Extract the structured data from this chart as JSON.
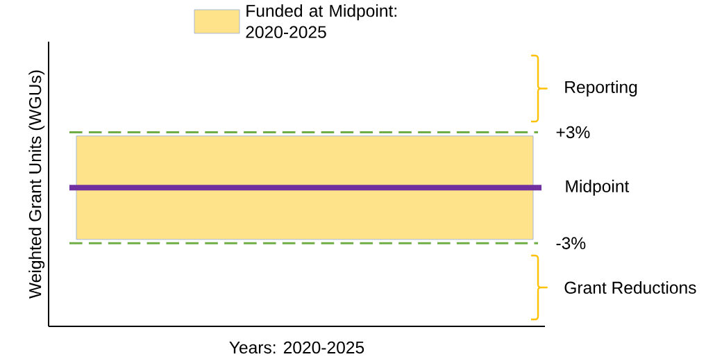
{
  "chart_data": {
    "type": "line",
    "xlabel": "Years: 2020-2025",
    "ylabel": "Weighted Grant Units (WGUs)",
    "categories": [
      null,
      null
    ],
    "series": [
      {
        "name": "Midpoint",
        "color": "#7030a0",
        "values": [
          0,
          0
        ]
      }
    ],
    "ylim": [
      -7.5,
      7.9
    ],
    "ref_lines": [
      {
        "axis": "y",
        "value": 3,
        "label": "+3%",
        "color": "#70ad47",
        "line_style": "dashed"
      },
      {
        "axis": "y",
        "value": -3,
        "label": "-3%",
        "color": "#70ad47",
        "line_style": "dashed"
      }
    ],
    "bands": [
      {
        "axis": "y",
        "from": -2.8,
        "to": 2.8,
        "label": "Funded at Midpoint: 2020-2025",
        "color": "#ffe38a"
      }
    ],
    "annotations": [
      "Reporting",
      "Grant Reductions"
    ],
    "legend": "top"
  }
}
